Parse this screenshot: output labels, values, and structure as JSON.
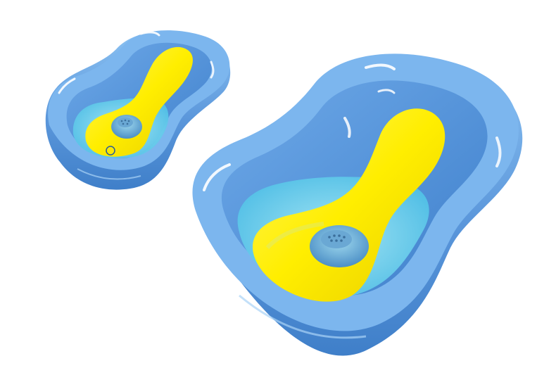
{
  "scene": {
    "description_free": true,
    "background_color": "#ffffff",
    "objects": [
      {
        "id": "small-tub",
        "kind": "baby-bathtub",
        "inner_seat": "bath-seat",
        "seat_color": "#ffee00",
        "tub_color": "#6ea9e8"
      },
      {
        "id": "large-tub",
        "kind": "baby-bathtub",
        "inner_seat": "bath-seat",
        "seat_color": "#ffee00",
        "tub_color": "#6ea9e8"
      }
    ],
    "colors": {
      "tub_outer": "#5b97db",
      "tub_rim": "#7cb6ee",
      "tub_inner": "#4f8ed6",
      "tub_highlight": "#ffffff",
      "water": "#6fd0ea",
      "water_light": "#a8e9f5",
      "seat": "#ffee00",
      "seat_shadow": "#e6c800",
      "drain": "#5b93c9"
    }
  }
}
